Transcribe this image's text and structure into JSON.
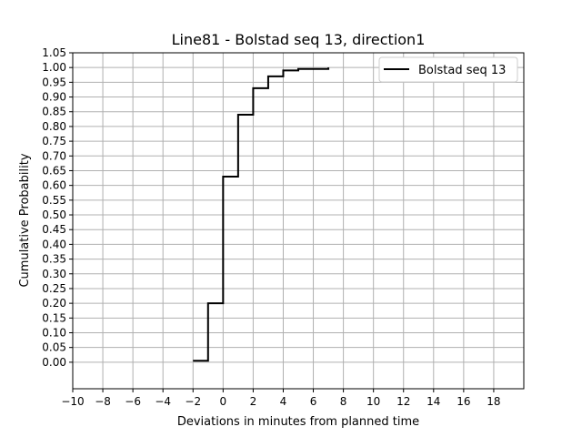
{
  "chart_data": {
    "type": "line",
    "title": "Line81 - Bolstad seq 13, direction1",
    "xlabel": "Deviations in minutes from planned time",
    "ylabel": "Cumulative Probability",
    "xlim": [
      -10,
      20
    ],
    "ylim": [
      -0.09,
      1.05
    ],
    "x_ticks": [
      -10,
      -8,
      -6,
      -4,
      -2,
      0,
      2,
      4,
      6,
      8,
      10,
      12,
      14,
      16,
      18
    ],
    "y_ticks": [
      0.0,
      0.05,
      0.1,
      0.15,
      0.2,
      0.25,
      0.3,
      0.35,
      0.4,
      0.45,
      0.5,
      0.55,
      0.6,
      0.65,
      0.7,
      0.75,
      0.8,
      0.85,
      0.9,
      0.95,
      1.0,
      1.05
    ],
    "x_tick_labels": [
      "−10",
      "−8",
      "−6",
      "−4",
      "−2",
      "0",
      "2",
      "4",
      "6",
      "8",
      "10",
      "12",
      "14",
      "16",
      "18"
    ],
    "y_tick_labels": [
      "0.00",
      "0.05",
      "0.10",
      "0.15",
      "0.20",
      "0.25",
      "0.30",
      "0.35",
      "0.40",
      "0.45",
      "0.50",
      "0.55",
      "0.60",
      "0.65",
      "0.70",
      "0.75",
      "0.80",
      "0.85",
      "0.90",
      "0.95",
      "1.00",
      "1.05"
    ],
    "grid": true,
    "legend_position": "top-right",
    "series": [
      {
        "name": "Bolstad seq 13",
        "color": "#000000",
        "step": true,
        "x": [
          -2,
          -1,
          0,
          1,
          2,
          3,
          4,
          5,
          6,
          7
        ],
        "y": [
          0.005,
          0.2,
          0.63,
          0.84,
          0.93,
          0.97,
          0.99,
          0.995,
          0.995,
          1.0
        ]
      }
    ]
  }
}
